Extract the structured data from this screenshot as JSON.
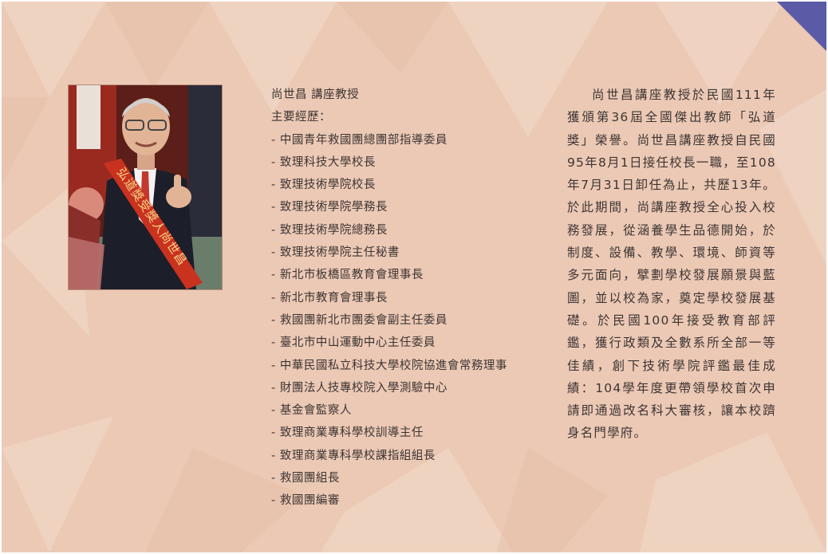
{
  "profile": {
    "name_title": "尚世昌 講座教授",
    "experience_heading": "主要經歷：",
    "experience": [
      "- 中國青年救國團總團部指導委員",
      "- 致理科技大學校長",
      "- 致理技術學院校長",
      "- 致理技術學院學務長",
      "- 致理技術學院總務長",
      "- 致理技術學院主任秘書",
      "- 新北市板橋區教育會理事長",
      "- 新北市教育會理事長",
      "- 救國團新北市團委會副主任委員",
      "- 臺北市中山運動中心主任委員",
      "- 中華民國私立科技大學校院協進會常務理事",
      "- 財團法人技專校院入學測驗中心",
      "- 基金會監察人",
      "- 致理商業專科學校訓導主任",
      "- 致理商業專科學校課指組組長",
      "- 救國團組長",
      "- 救國團編審"
    ]
  },
  "photo": {
    "sash_text": "弘道獎受獎人尚世昌"
  },
  "story": {
    "text": "尚世昌講座教授於民國111年獲頒第36屆全國傑出教師「弘道獎」榮譽。尚世昌講座教授自民國95年8月1日接任校長一職，至108年7月31日卸任為止，共歷13年。於此期間，尚講座教授全心投入校務發展，從涵養學生品德開始，於制度、設備、教學、環境、師資等多元面向，擘劃學校發展願景與藍圖，並以校為家，奠定學校發展基礎。於民國100年接受教育部評鑑，獲行政類及全數系所全部一等佳績，創下技術學院評鑑最佳成績：104學年度更帶領學校首次申請即通過改名科大審核，讓本校躋身名門學府。"
  },
  "colors": {
    "background": "#ecc9b5",
    "corner_accent": "#5a5aa6",
    "text": "#3d3533",
    "sash": "#c8321e"
  }
}
